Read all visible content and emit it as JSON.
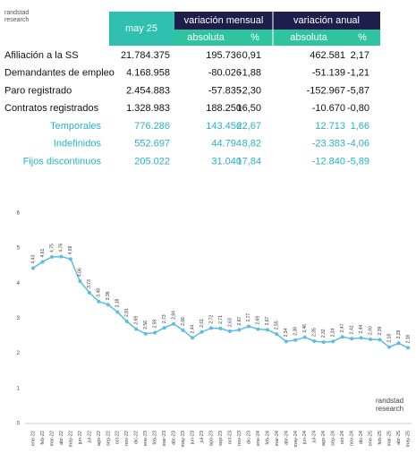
{
  "brand": [
    "randstad",
    "research"
  ],
  "table": {
    "header": {
      "current": "may 25",
      "monthly": "variación mensual",
      "annual": "variación anual"
    },
    "subheader": [
      "absoluta",
      "%",
      "absoluta",
      "%"
    ],
    "rows": [
      [
        "Afiliación a la SS",
        "21.784.375",
        "195.736",
        "0,91",
        "462.581",
        "2,17"
      ],
      [
        "Demandantes de empleo",
        "4.168.958",
        "-80.026",
        "-1,88",
        "-51.139",
        "-1,21"
      ],
      [
        "Paro registrado",
        "2.454.883",
        "-57.835",
        "-2,30",
        "-152.967",
        "-5,87"
      ],
      [
        "Contratos registrados",
        "1.328.983",
        "188.250",
        "16,50",
        "-10.670",
        "-0,80"
      ]
    ],
    "detail_rows": [
      [
        "Temporales",
        "776.286",
        "143.456",
        "22,67",
        "12.713",
        "1,66"
      ],
      [
        "Indefinidos",
        "552.697",
        "44.794",
        "8,82",
        "-23.383",
        "-4,06"
      ],
      [
        "Fijos discontinuos",
        "205.022",
        "31.040",
        "17,84",
        "-12.840",
        "-5,89"
      ]
    ]
  },
  "chart_data": {
    "type": "line",
    "annotation": [
      "randstad",
      "research"
    ],
    "categories": [
      "ene-22",
      "feb-22",
      "mar-22",
      "abr-22",
      "may-22",
      "jun-22",
      "jul-22",
      "ago-22",
      "sep-22",
      "oct-22",
      "nov-22",
      "dic-22",
      "ene-23",
      "feb-23",
      "mar-23",
      "abr-23",
      "may-23",
      "jun-23",
      "jul-23",
      "ago-23",
      "sep-23",
      "oct-23",
      "nov-23",
      "dic-23",
      "ene-24",
      "feb-24",
      "mar-24",
      "abr-24",
      "may-24",
      "jun-24",
      "jul-24",
      "ago-24",
      "sep-24",
      "oct-24",
      "nov-24",
      "dic-24",
      "ene-25",
      "feb-25",
      "mar-25",
      "abr-25",
      "may-25"
    ],
    "series": [
      {
        "color": "#5bbde4",
        "values": [
          4.43,
          4.61,
          4.75,
          4.76,
          4.69,
          4.06,
          3.73,
          3.48,
          3.39,
          3.18,
          2.91,
          2.69,
          2.56,
          2.59,
          2.73,
          2.84,
          2.66,
          2.44,
          2.61,
          2.72,
          2.71,
          2.63,
          2.67,
          2.77,
          2.69,
          2.67,
          2.55,
          2.34,
          2.38,
          2.46,
          2.35,
          2.32,
          2.34,
          2.47,
          2.42,
          2.44,
          2.4,
          2.39,
          2.18,
          2.29,
          2.16
        ],
        "value_labels": [
          "4,43",
          "4,61",
          "4,75",
          "4,76",
          "4,69",
          "4,06",
          "3,73",
          "3,48",
          "3,39",
          "3,18",
          "2,91",
          "2,69",
          "2,56",
          "2,59",
          "2,73",
          "2,84",
          "2,66",
          "2,44",
          "2,61",
          "2,72",
          "2,71",
          "2,63",
          "2,67",
          "2,77",
          "2,69",
          "2,67",
          "2,55",
          "2,34",
          "2,38",
          "2,46",
          "2,35",
          "2,32",
          "2,34",
          "2,47",
          "2,42",
          "2,44",
          "2,40",
          "2,39",
          "2,18",
          "2,29",
          "2,16"
        ]
      }
    ],
    "ylim": [
      0,
      6
    ],
    "yticks": [
      0,
      1,
      2,
      3,
      4,
      5,
      6
    ],
    "grid": false
  }
}
